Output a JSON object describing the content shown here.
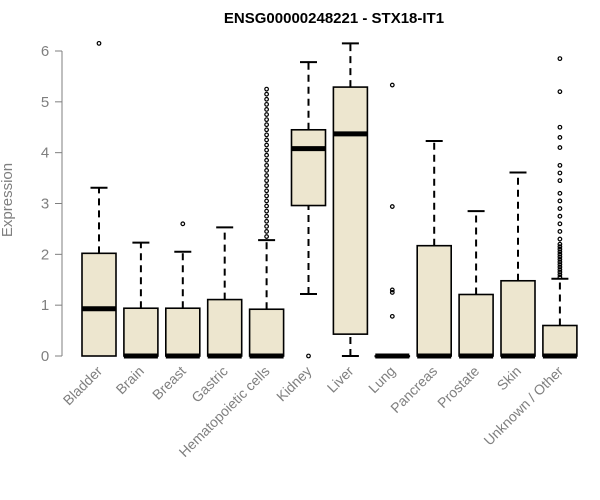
{
  "chart_data": {
    "type": "boxplot",
    "title": "ENSG00000248221 - STX18-IT1",
    "xlabel": "",
    "ylabel": "Expression",
    "ylim": [
      0,
      6.2
    ],
    "yticks": [
      0,
      1,
      2,
      3,
      4,
      5,
      6
    ],
    "grid": false,
    "colors": {
      "box_fill": "#ede6cf",
      "stroke": "#000000",
      "axis": "#7f7f7f"
    },
    "categories": [
      "Bladder",
      "Brain",
      "Breast",
      "Gastric",
      "Hematopoietic cells",
      "Kidney",
      "Liver",
      "Lung",
      "Pancreas",
      "Prostate",
      "Skin",
      "Unknown / Other"
    ],
    "boxes": [
      {
        "min": 0,
        "q1": 0,
        "median": 0.93,
        "q3": 2.02,
        "max": 3.31,
        "outliers": [
          6.15
        ]
      },
      {
        "min": 0,
        "q1": 0,
        "median": 0,
        "q3": 0.94,
        "max": 2.23,
        "outliers": []
      },
      {
        "min": 0,
        "q1": 0,
        "median": 0,
        "q3": 0.94,
        "max": 2.05,
        "outliers": [
          2.6
        ]
      },
      {
        "min": 0,
        "q1": 0,
        "median": 0,
        "q3": 1.11,
        "max": 2.53,
        "outliers": []
      },
      {
        "min": 0,
        "q1": 0,
        "median": 0,
        "q3": 0.92,
        "max": 2.28,
        "outliers": [
          2.35,
          2.45,
          2.55,
          2.65,
          2.75,
          2.85,
          2.95,
          3.05,
          3.15,
          3.25,
          3.35,
          3.45,
          3.55,
          3.65,
          3.75,
          3.85,
          3.95,
          4.05,
          4.15,
          4.25,
          4.35,
          4.45,
          4.55,
          4.65,
          4.75,
          4.85,
          4.95,
          5.05,
          5.15,
          5.25
        ]
      },
      {
        "min": 1.22,
        "q1": 2.96,
        "median": 4.08,
        "q3": 4.45,
        "max": 5.78,
        "outliers": [
          0
        ]
      },
      {
        "min": 0,
        "q1": 0.43,
        "median": 4.37,
        "q3": 5.29,
        "max": 6.15,
        "outliers": []
      },
      {
        "min": 0,
        "q1": 0,
        "median": 0,
        "q3": 0,
        "max": 0,
        "outliers": [
          0.78,
          1.25,
          1.3,
          2.94,
          5.33
        ]
      },
      {
        "min": 0,
        "q1": 0,
        "median": 0,
        "q3": 2.17,
        "max": 4.23,
        "outliers": []
      },
      {
        "min": 0,
        "q1": 0,
        "median": 0,
        "q3": 1.21,
        "max": 2.85,
        "outliers": []
      },
      {
        "min": 0,
        "q1": 0,
        "median": 0,
        "q3": 1.48,
        "max": 3.61,
        "outliers": []
      },
      {
        "min": 0,
        "q1": 0,
        "median": 0,
        "q3": 0.6,
        "max": 1.52,
        "outliers": [
          1.55,
          1.6,
          1.65,
          1.7,
          1.75,
          1.8,
          1.85,
          1.9,
          1.95,
          2.0,
          2.05,
          2.1,
          2.15,
          2.2,
          2.3,
          2.45,
          2.6,
          2.75,
          2.9,
          3.05,
          3.2,
          3.45,
          3.6,
          3.75,
          4.1,
          4.3,
          4.5,
          5.2,
          5.85
        ]
      }
    ]
  }
}
